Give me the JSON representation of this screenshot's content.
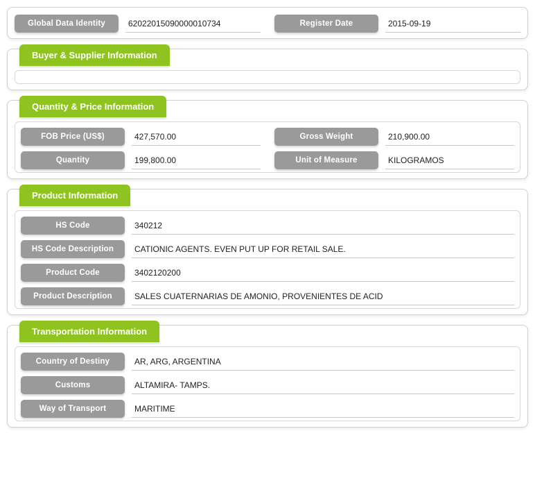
{
  "colors": {
    "tab_bg": "#8fc31f",
    "pill_bg": "#9a9a9a",
    "pill_text": "#ffffff",
    "panel_border": "#d0d0d0",
    "value_underline": "#c8c8c8",
    "text": "#333333"
  },
  "identity": {
    "global_data_identity_label": "Global Data Identity",
    "global_data_identity_value": "62022015090000010734",
    "register_date_label": "Register Date",
    "register_date_value": "2015-09-19"
  },
  "buyer_supplier": {
    "title": "Buyer & Supplier Information"
  },
  "quantity_price": {
    "title": "Quantity & Price Information",
    "fob_price_label": "FOB Price (US$)",
    "fob_price_value": "427,570.00",
    "gross_weight_label": "Gross Weight",
    "gross_weight_value": "210,900.00",
    "quantity_label": "Quantity",
    "quantity_value": "199,800.00",
    "unit_of_measure_label": "Unit of Measure",
    "unit_of_measure_value": "KILOGRAMOS"
  },
  "product": {
    "title": "Product Information",
    "hs_code_label": "HS Code",
    "hs_code_value": "340212",
    "hs_code_desc_label": "HS Code Description",
    "hs_code_desc_value": "CATIONIC AGENTS. EVEN PUT UP FOR RETAIL SALE.",
    "product_code_label": "Product Code",
    "product_code_value": "3402120200",
    "product_desc_label": "Product Description",
    "product_desc_value": "SALES CUATERNARIAS DE AMONIO, PROVENIENTES DE ACID"
  },
  "transportation": {
    "title": "Transportation Information",
    "country_destiny_label": "Country of Destiny",
    "country_destiny_value": "AR, ARG, ARGENTINA",
    "customs_label": "Customs",
    "customs_value": "ALTAMIRA- TAMPS.",
    "way_transport_label": "Way of Transport",
    "way_transport_value": "MARITIME"
  }
}
